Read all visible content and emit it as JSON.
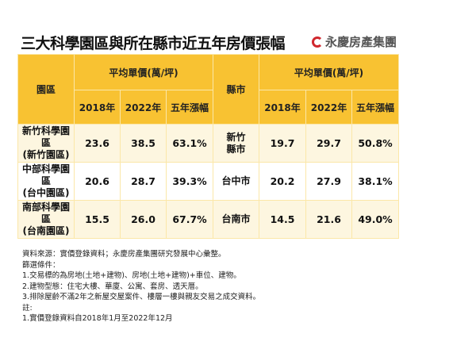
{
  "title": "三大科學園區與所在縣市近五年房價張幅",
  "logo_text": "永慶房產集團",
  "header": {
    "park": "園區",
    "city": "縣市",
    "avg_price": "平均單價(萬/坪)",
    "y2018": "2018年",
    "y2022": "2022年",
    "growth": "五年漲幅"
  },
  "rows": [
    {
      "park": "新竹科學園區\n(新竹園區)",
      "p2018": "23.6",
      "p2022": "38.5",
      "pg": "63.1%",
      "city": "新竹\n縣市",
      "c2018": "19.7",
      "c2022": "29.7",
      "cg": "50.8%"
    },
    {
      "park": "中部科學園區\n(台中園區)",
      "p2018": "20.6",
      "p2022": "28.7",
      "pg": "39.3%",
      "city": "台中市",
      "c2018": "20.2",
      "c2022": "27.9",
      "cg": "38.1%"
    },
    {
      "park": "南部科學園區\n(台南園區)",
      "p2018": "15.5",
      "p2022": "26.0",
      "pg": "67.7%",
      "city": "台南市",
      "c2018": "14.5",
      "c2022": "21.6",
      "cg": "49.0%"
    }
  ],
  "notes": [
    "資料來源：實價登錄資料；永慶房產集團研究發展中心彙整。",
    "篩選條件：",
    "1.交易標的為房地(土地+建物)、房地(土地+建物)+車位、建物。",
    "2.建物型態：住宅大樓、華廈、公寓、套房、透天厝。",
    "3.排除屋齡不滿2年之新屋交屋案件、樓層一樓與親友交易之成交資料。",
    "註:",
    "1.實價登錄資料自2018年1月至2022年12月"
  ],
  "colors": {
    "header": "#f8c232",
    "row_alt": "#fdf6e0",
    "logo": "#d0282e"
  }
}
